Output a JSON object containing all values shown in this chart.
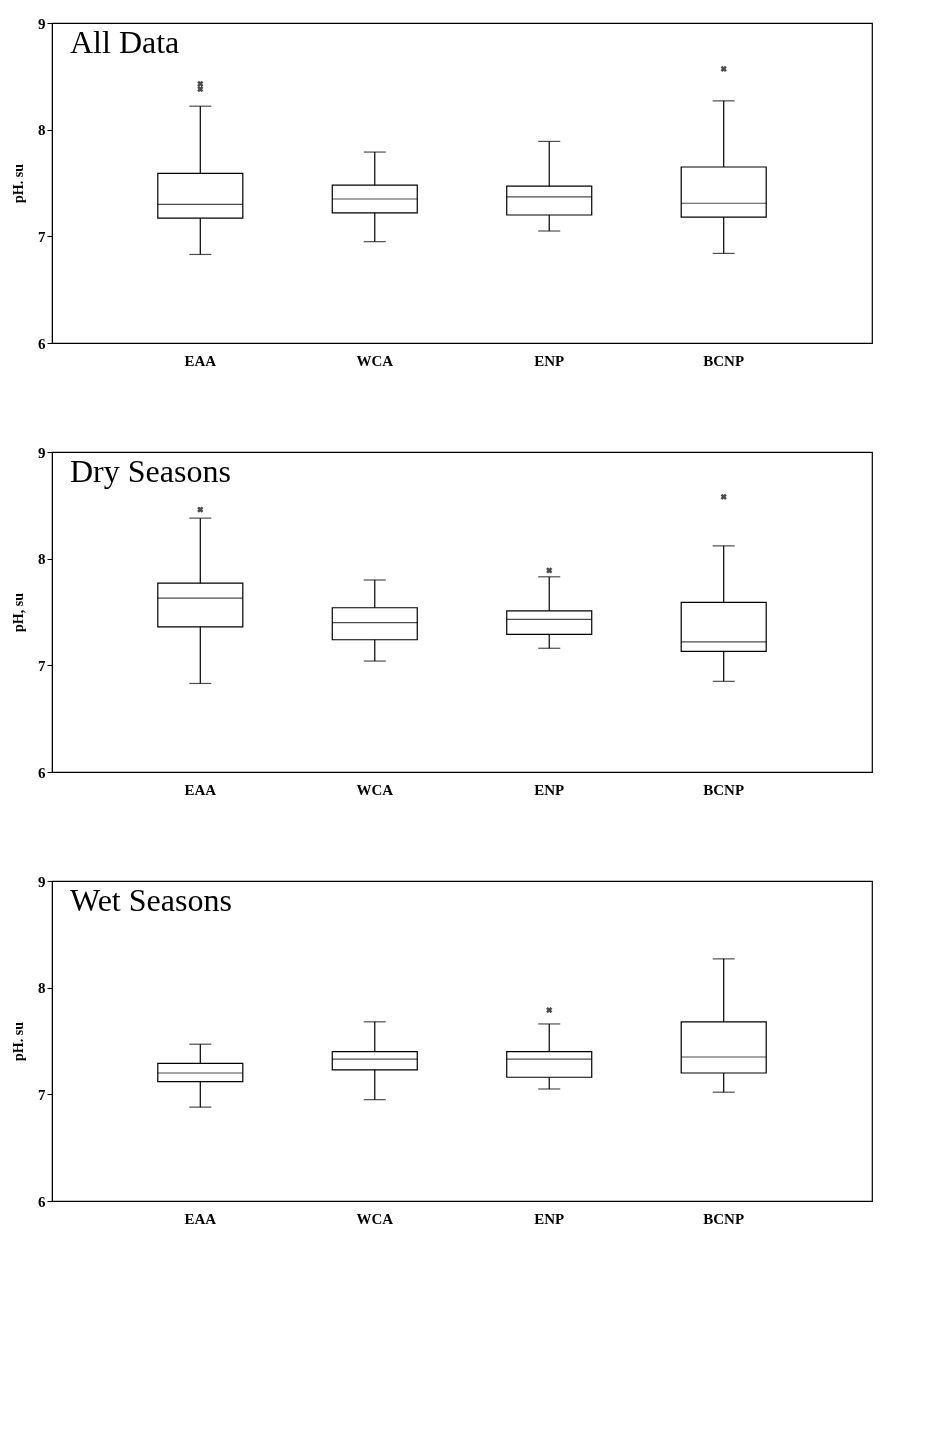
{
  "chart_data": [
    {
      "type": "box",
      "title": "All Data",
      "ylabel": "pH. su",
      "categories": [
        "EAA",
        "WCA",
        "ENP",
        "BCNP"
      ],
      "ylim": [
        6,
        9
      ],
      "yticks": [
        6,
        7,
        8,
        9
      ],
      "grid": false,
      "boxes": [
        {
          "low": 6.83,
          "q1": 7.17,
          "median": 7.3,
          "q3": 7.59,
          "high": 8.22,
          "outliers": [
            8.38,
            8.43
          ]
        },
        {
          "low": 6.95,
          "q1": 7.22,
          "median": 7.35,
          "q3": 7.48,
          "high": 7.79
        },
        {
          "low": 7.05,
          "q1": 7.2,
          "median": 7.37,
          "q3": 7.47,
          "high": 7.89
        },
        {
          "low": 6.84,
          "q1": 7.18,
          "median": 7.31,
          "q3": 7.65,
          "high": 8.27,
          "outliers": [
            8.57
          ]
        }
      ]
    },
    {
      "type": "box",
      "title": "Dry Seasons",
      "ylabel": "pH, su",
      "categories": [
        "EAA",
        "WCA",
        "ENP",
        "BCNP"
      ],
      "ylim": [
        6,
        9
      ],
      "yticks": [
        6,
        7,
        8,
        9
      ],
      "grid": false,
      "boxes": [
        {
          "low": 6.83,
          "q1": 7.36,
          "median": 7.63,
          "q3": 7.77,
          "high": 8.38,
          "outliers": [
            8.46
          ]
        },
        {
          "low": 7.04,
          "q1": 7.24,
          "median": 7.4,
          "q3": 7.54,
          "high": 7.8
        },
        {
          "low": 7.16,
          "q1": 7.29,
          "median": 7.43,
          "q3": 7.51,
          "high": 7.83,
          "outliers": [
            7.89
          ]
        },
        {
          "low": 6.85,
          "q1": 7.13,
          "median": 7.22,
          "q3": 7.59,
          "high": 8.12,
          "outliers": [
            8.58
          ]
        }
      ]
    },
    {
      "type": "box",
      "title": "Wet Seasons",
      "ylabel": "pH. su",
      "categories": [
        "EAA",
        "WCA",
        "ENP",
        "BCNP"
      ],
      "ylim": [
        6,
        9
      ],
      "yticks": [
        6,
        7,
        8,
        9
      ],
      "grid": false,
      "boxes": [
        {
          "low": 6.88,
          "q1": 7.12,
          "median": 7.2,
          "q3": 7.29,
          "high": 7.47
        },
        {
          "low": 6.95,
          "q1": 7.23,
          "median": 7.33,
          "q3": 7.4,
          "high": 7.68
        },
        {
          "low": 7.05,
          "q1": 7.16,
          "median": 7.33,
          "q3": 7.4,
          "high": 7.66,
          "outliers": [
            7.79
          ]
        },
        {
          "low": 7.02,
          "q1": 7.2,
          "median": 7.35,
          "q3": 7.68,
          "high": 8.27
        }
      ]
    }
  ]
}
